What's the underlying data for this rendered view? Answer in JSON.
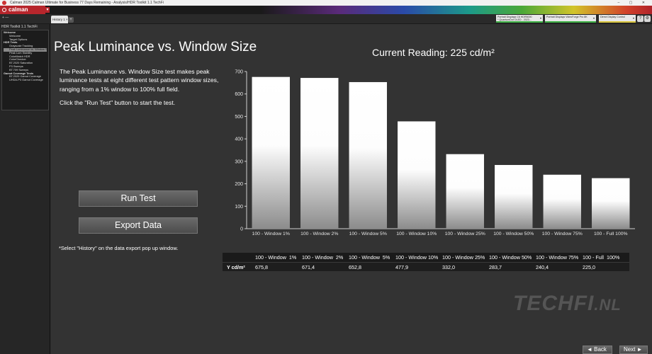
{
  "window": {
    "title": "Calman 2025 Calman Ultimate for Business 77 Days Remaining - Analysis/HDR Toolkit 1.1 TechFi",
    "controls": "–  ▢  ✕"
  },
  "app": {
    "logo": "calman",
    "logo_color": "#b7262c"
  },
  "sidebar": {
    "workflow_title": "HDR Toolkit 1.1 TechFi",
    "header_icons": "+  —",
    "section_title": "HDR Toolkit 1.1 TechFi",
    "items": [
      {
        "label": "Welcome",
        "kind": "group"
      },
      {
        "label": "Welcome",
        "kind": "item"
      },
      {
        "label": "Target Options",
        "kind": "item"
      },
      {
        "label": "HDR Tests",
        "kind": "group"
      },
      {
        "label": "Grayscale Tracking",
        "kind": "item"
      },
      {
        "label": "Peak Luminance vs. Window Size",
        "kind": "item",
        "selected": true
      },
      {
        "label": "Peak Lum Stability",
        "kind": "item"
      },
      {
        "label": "ColorMatch HDR",
        "kind": "item"
      },
      {
        "label": "ColorChecker",
        "kind": "item"
      },
      {
        "label": "BT.2020 Saturation",
        "kind": "item"
      },
      {
        "label": "P3 Sweeps",
        "kind": "item"
      },
      {
        "label": "BT.709 Sweeps",
        "kind": "item"
      },
      {
        "label": "Gamut Coverage Tests",
        "kind": "group"
      },
      {
        "label": "BT.2020 Gamut Coverage",
        "kind": "item"
      },
      {
        "label": "UHDA-P3 Gamut Coverage",
        "kind": "item"
      }
    ]
  },
  "tabs": [
    {
      "label": "History 1",
      "close": "×"
    }
  ],
  "tab_add": "+",
  "devices": [
    {
      "line1": "Portrait Displays C6 HDR5000",
      "line2": "* QuantumDot OLED - 2023...",
      "accent": "#3cb043"
    },
    {
      "line1": "Portrait Displays VideoForge Pro 8K",
      "line2": "",
      "accent": "#3cb043"
    },
    {
      "line1": "Direct Display Control",
      "line2": "",
      "accent": "#d8c43a"
    }
  ],
  "toolbar_icons": [
    "help-icon",
    "settings-icon"
  ],
  "toolbar_glyphs": {
    "help": "?",
    "settings": "⚙"
  },
  "page": {
    "title": "Peak Luminance vs. Window Size",
    "current_reading": "Current Reading: 225 cd/m²",
    "description": "The Peak Luminance vs. Window Size test makes peak luminance tests at eight different test pattern window sizes, ranging from a 1% window to 100% full field.",
    "instruction": "Click the \"Run Test\" button to start the test.",
    "run_test_label": "Run Test",
    "export_data_label": "Export  Data",
    "note": "*Select \"History\" on the data export pop up window."
  },
  "chart_data": {
    "type": "bar",
    "categories": [
      "100 - Window  1%",
      "100 - Window  2%",
      "100 - Window  5%",
      "100 - Window 10%",
      "100 - Window 25%",
      "100 - Window 50%",
      "100 - Window 75%",
      "100 - Full  100%"
    ],
    "values": [
      675.8,
      671.4,
      652.8,
      477.9,
      332.0,
      283.7,
      240.4,
      225.0
    ],
    "ylim": [
      0,
      700
    ],
    "yticks": [
      0,
      100,
      200,
      300,
      400,
      500,
      600,
      700
    ],
    "title": "",
    "xlabel": "",
    "ylabel": "",
    "grid": false,
    "bar_fill": "gradient white to grey"
  },
  "table": {
    "headers": [
      "100 - Window  1%",
      "100 - Window  2%",
      "100 - Window  5%",
      "100 - Window 10%",
      "100 - Window 25%",
      "100 - Window 50%",
      "100 - Window 75%",
      "100 - Full  100%"
    ],
    "row_label": "Y cd/m²",
    "values": [
      "675,8",
      "671,4",
      "652,8",
      "477,9",
      "332,0",
      "283,7",
      "240,4",
      "225,0"
    ]
  },
  "watermark": {
    "text": "TECHFI",
    "suffix": ".NL"
  },
  "nav": {
    "back": "◄ Back",
    "next": "Next ►"
  }
}
